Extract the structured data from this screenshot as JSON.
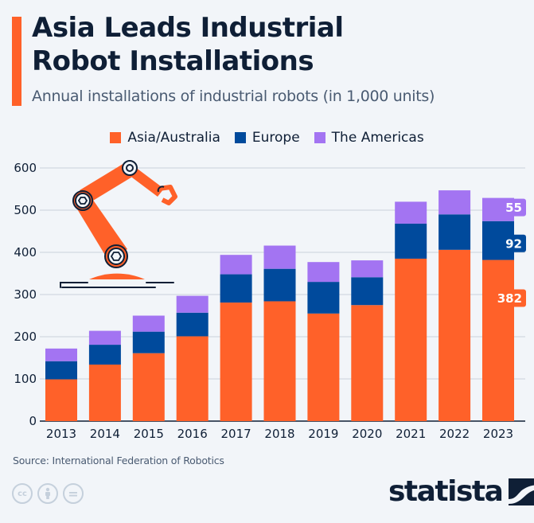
{
  "title": "Asia Leads Industrial Robot Installations",
  "title_lines": [
    "Asia Leads Industrial",
    "Robot Installations"
  ],
  "subtitle": "Annual installations of industrial robots (in 1,000 units)",
  "colors": {
    "accent": "#ff6129",
    "asia": "#ff6129",
    "europe": "#004a9c",
    "americas": "#a374f2",
    "text": "#0f1f36",
    "grid": "#c9d1db"
  },
  "legend": [
    {
      "label": "Asia/Australia",
      "color": "#ff6129"
    },
    {
      "label": "Europe",
      "color": "#004a9c"
    },
    {
      "label": "The Americas",
      "color": "#a374f2"
    }
  ],
  "chart_data": {
    "type": "bar",
    "stacked": true,
    "title": "Asia Leads Industrial Robot Installations",
    "subtitle": "Annual installations of industrial robots (in 1,000 units)",
    "xlabel": "",
    "ylabel": "",
    "ylim": [
      0,
      600
    ],
    "yticks": [
      0,
      100,
      200,
      300,
      400,
      500,
      600
    ],
    "grid": true,
    "legend_position": "top-center",
    "categories": [
      "2013",
      "2014",
      "2015",
      "2016",
      "2017",
      "2018",
      "2019",
      "2020",
      "2021",
      "2022",
      "2023"
    ],
    "series": [
      {
        "name": "Asia/Australia",
        "color": "#ff6129",
        "values": [
          99,
          134,
          161,
          201,
          281,
          284,
          255,
          275,
          385,
          406,
          382
        ]
      },
      {
        "name": "Europe",
        "color": "#004a9c",
        "values": [
          43,
          47,
          51,
          56,
          67,
          77,
          75,
          66,
          83,
          84,
          92
        ]
      },
      {
        "name": "The Americas",
        "color": "#a374f2",
        "values": [
          30,
          33,
          38,
          40,
          46,
          55,
          47,
          40,
          52,
          57,
          55
        ]
      }
    ],
    "data_labels": [
      {
        "category": "2023",
        "series": "The Americas",
        "text": "55"
      },
      {
        "category": "2023",
        "series": "Europe",
        "text": "92"
      },
      {
        "category": "2023",
        "series": "Asia/Australia",
        "text": "382"
      }
    ]
  },
  "source": "Source: International Federation of Robotics",
  "license_icons": [
    "cc-icon",
    "attribution-icon",
    "no-derivatives-icon"
  ],
  "license_labels": [
    "cc",
    "=",
    ""
  ],
  "logo": {
    "text": "statista"
  }
}
